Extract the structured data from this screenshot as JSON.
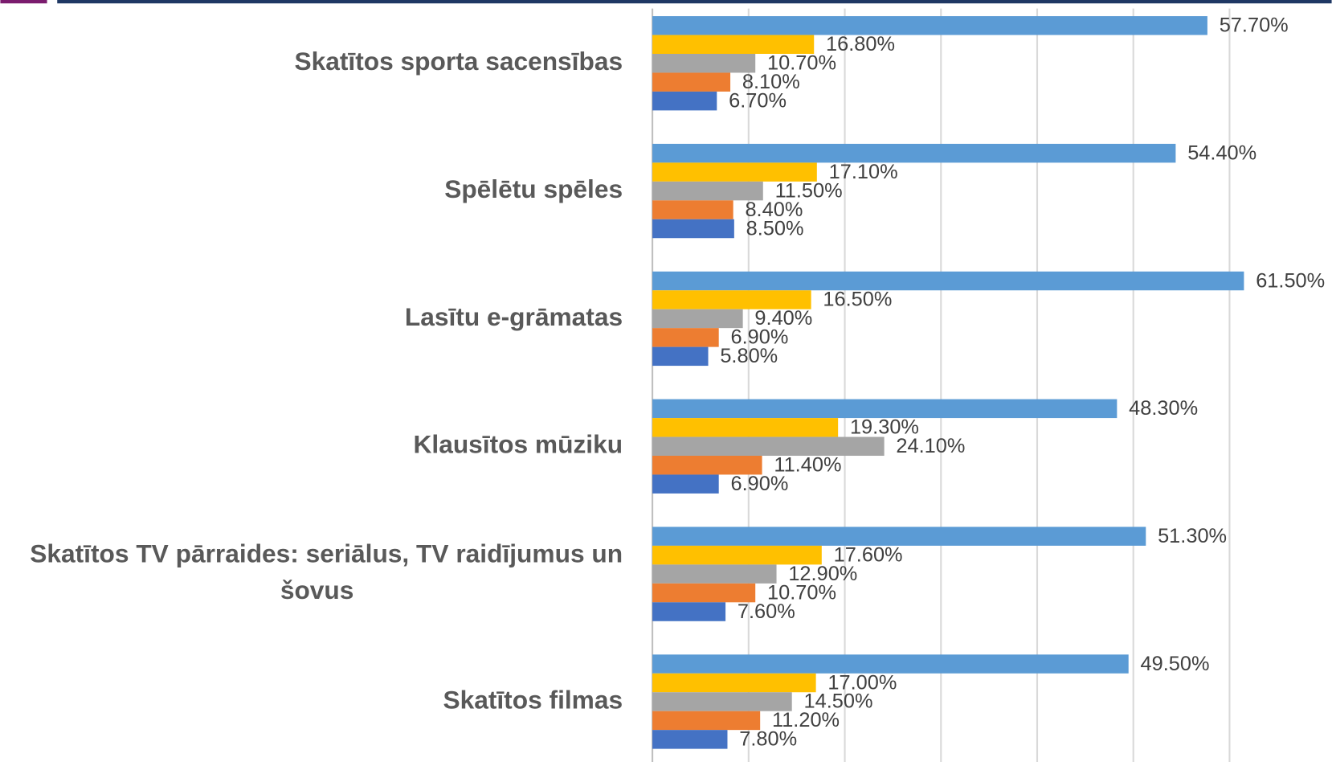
{
  "chart_data": {
    "type": "barh",
    "categories": [
      "Skatītos sporta sacensības",
      "Spēlētu spēles",
      "Lasītu e-grāmatas",
      "Klausītos mūziku",
      "Skatītos TV pārraides: seriālus, TV raidījumus un šovus",
      "Skatītos filmas"
    ],
    "series": [
      {
        "color": "#5b9bd5",
        "values": [
          57.7,
          54.4,
          61.5,
          48.3,
          51.3,
          49.5
        ],
        "value_labels": [
          "57.70%",
          "54.40%",
          "61.50%",
          "48.30%",
          "51.30%",
          "49.50%"
        ]
      },
      {
        "color": "#ffc000",
        "values": [
          16.8,
          17.1,
          16.5,
          19.3,
          17.6,
          17.0
        ],
        "value_labels": [
          "16.80%",
          "17.10%",
          "16.50%",
          "19.30%",
          "17.60%",
          "17.00%"
        ]
      },
      {
        "color": "#a5a5a5",
        "values": [
          10.7,
          11.5,
          9.4,
          24.1,
          12.9,
          14.5
        ],
        "value_labels": [
          "10.70%",
          "11.50%",
          "9.40%",
          "24.10%",
          "12.90%",
          "14.50%"
        ]
      },
      {
        "color": "#ed7d31",
        "values": [
          8.1,
          8.4,
          6.9,
          11.4,
          10.7,
          11.2
        ],
        "value_labels": [
          "8.10%",
          "8.40%",
          "6.90%",
          "11.40%",
          "10.70%",
          "11.20%"
        ]
      },
      {
        "color": "#4472c4",
        "values": [
          6.7,
          8.5,
          5.8,
          6.9,
          7.6,
          7.8
        ],
        "value_labels": [
          "6.70%",
          "8.50%",
          "5.80%",
          "6.90%",
          "7.60%",
          "7.80%"
        ]
      }
    ],
    "xlim": [
      0,
      70
    ],
    "xticks": [
      0,
      10,
      20,
      30,
      40,
      50,
      60
    ],
    "grid": true
  }
}
